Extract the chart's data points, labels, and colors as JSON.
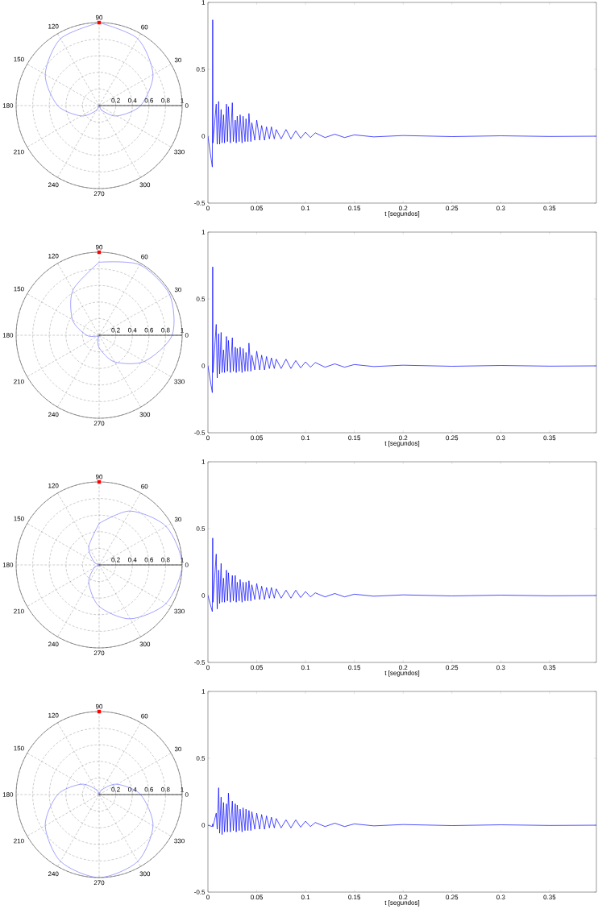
{
  "chart_data": [
    {
      "type": "radar",
      "categories": [
        "90",
        "60",
        "30",
        "0",
        "330",
        "300",
        "270",
        "240",
        "210",
        "180",
        "150",
        "120"
      ],
      "ylim": [
        0,
        1
      ],
      "yticks": [
        0.2,
        0.4,
        0.6,
        0.8,
        1
      ],
      "grid": true,
      "series": [
        {
          "color": "#6464ff",
          "values": [
            1,
            0.93,
            0.75,
            0.5,
            0.25,
            0.07,
            0,
            0.07,
            0.25,
            0.5,
            0.75,
            0.93
          ]
        }
      ]
    },
    {
      "type": "line",
      "color": "#0000ff",
      "xlabel": "t [segundos]",
      "xlim": [
        0,
        0.398
      ],
      "xticks": [
        0,
        0.05,
        0.1,
        0.15,
        0.2,
        0.25,
        0.3,
        0.35
      ],
      "ylim": [
        -0.5,
        1
      ],
      "yticks": [
        -0.5,
        0,
        0.5,
        1
      ],
      "x": [
        0,
        0.0045,
        0.0049,
        0.0052,
        0.0085,
        0.0095,
        0.011,
        0.012,
        0.0135,
        0.0145,
        0.016,
        0.017,
        0.019,
        0.02,
        0.021,
        0.023,
        0.025,
        0.026,
        0.028,
        0.029,
        0.03,
        0.032,
        0.033,
        0.035,
        0.036,
        0.038,
        0.039,
        0.041,
        0.042,
        0.044,
        0.045,
        0.048,
        0.05,
        0.053,
        0.055,
        0.058,
        0.06,
        0.063,
        0.065,
        0.068,
        0.07,
        0.075,
        0.08,
        0.085,
        0.09,
        0.095,
        0.1,
        0.105,
        0.11,
        0.12,
        0.13,
        0.14,
        0.15,
        0.17,
        0.2,
        0.25,
        0.3,
        0.35,
        0.398
      ],
      "values": [
        0,
        -0.23,
        0.87,
        -0.05,
        0.24,
        -0.06,
        0.26,
        -0.06,
        0.2,
        -0.05,
        0.16,
        -0.05,
        0.24,
        -0.04,
        0.22,
        -0.05,
        0.25,
        -0.04,
        0.12,
        -0.05,
        0.15,
        -0.04,
        0.16,
        -0.05,
        0.15,
        -0.04,
        0.13,
        -0.04,
        0.17,
        -0.04,
        0.1,
        -0.03,
        0.12,
        -0.03,
        0.08,
        -0.03,
        0.07,
        -0.02,
        0.07,
        -0.02,
        0.05,
        -0.02,
        0.05,
        -0.02,
        0.04,
        -0.015,
        0.03,
        -0.01,
        0.025,
        -0.01,
        0.015,
        -0.01,
        0.01,
        -0.005,
        0.005,
        -0.003,
        0.003,
        -0.002,
        0
      ]
    },
    {
      "type": "radar",
      "categories": [
        "90",
        "60",
        "30",
        "0",
        "330",
        "300",
        "270",
        "240",
        "210",
        "180",
        "150",
        "120"
      ],
      "ylim": [
        0,
        1
      ],
      "yticks": [
        0.2,
        0.4,
        0.6,
        0.8,
        1
      ],
      "grid": true,
      "series": [
        {
          "color": "#6464ff",
          "values": [
            0.88,
            0.98,
            0.98,
            0.88,
            0.63,
            0.37,
            0.15,
            0.02,
            0.02,
            0.15,
            0.37,
            0.63
          ]
        }
      ]
    },
    {
      "type": "line",
      "color": "#0000ff",
      "xlabel": "t [segundos]",
      "xlim": [
        0,
        0.398
      ],
      "xticks": [
        0,
        0.05,
        0.1,
        0.15,
        0.2,
        0.25,
        0.3,
        0.35
      ],
      "ylim": [
        -0.5,
        1
      ],
      "yticks": [
        -0.5,
        0,
        0.5,
        1
      ],
      "x": [
        0,
        0.0045,
        0.0049,
        0.0052,
        0.0085,
        0.0095,
        0.011,
        0.012,
        0.0135,
        0.0145,
        0.016,
        0.017,
        0.019,
        0.02,
        0.021,
        0.023,
        0.025,
        0.026,
        0.028,
        0.029,
        0.03,
        0.032,
        0.033,
        0.035,
        0.036,
        0.038,
        0.039,
        0.041,
        0.042,
        0.044,
        0.045,
        0.048,
        0.05,
        0.053,
        0.055,
        0.058,
        0.06,
        0.063,
        0.065,
        0.068,
        0.07,
        0.075,
        0.08,
        0.085,
        0.09,
        0.095,
        0.1,
        0.105,
        0.11,
        0.12,
        0.13,
        0.14,
        0.15,
        0.17,
        0.2,
        0.25,
        0.3,
        0.35,
        0.398
      ],
      "values": [
        0,
        -0.2,
        0.74,
        -0.05,
        0.31,
        -0.09,
        0.24,
        -0.06,
        0.25,
        -0.05,
        0.12,
        -0.05,
        0.22,
        -0.04,
        0.19,
        -0.05,
        0.21,
        -0.04,
        0.14,
        -0.05,
        0.13,
        -0.04,
        0.14,
        -0.05,
        0.13,
        -0.04,
        0.1,
        -0.04,
        0.17,
        -0.04,
        0.08,
        -0.03,
        0.11,
        -0.03,
        0.08,
        -0.03,
        0.07,
        -0.02,
        0.06,
        -0.02,
        0.05,
        -0.02,
        0.05,
        -0.02,
        0.04,
        -0.015,
        0.03,
        -0.01,
        0.025,
        -0.01,
        0.015,
        -0.01,
        0.01,
        -0.005,
        0.005,
        -0.003,
        0.003,
        -0.002,
        0
      ]
    },
    {
      "type": "radar",
      "categories": [
        "90",
        "60",
        "30",
        "0",
        "330",
        "300",
        "270",
        "240",
        "210",
        "180",
        "150",
        "120"
      ],
      "ylim": [
        0,
        1
      ],
      "yticks": [
        0.2,
        0.4,
        0.6,
        0.8,
        1
      ],
      "grid": true,
      "series": [
        {
          "color": "#6464ff",
          "values": [
            0.5,
            0.75,
            0.93,
            1,
            0.93,
            0.75,
            0.5,
            0.25,
            0.07,
            0,
            0.07,
            0.25
          ]
        }
      ]
    },
    {
      "type": "line",
      "color": "#0000ff",
      "xlabel": "t [segundos]",
      "xlim": [
        0,
        0.398
      ],
      "xticks": [
        0,
        0.05,
        0.1,
        0.15,
        0.2,
        0.25,
        0.3,
        0.35
      ],
      "ylim": [
        -0.5,
        1
      ],
      "yticks": [
        -0.5,
        0,
        0.5,
        1
      ],
      "x": [
        0,
        0.0045,
        0.0049,
        0.0052,
        0.0085,
        0.0095,
        0.011,
        0.012,
        0.0135,
        0.0145,
        0.016,
        0.017,
        0.019,
        0.02,
        0.021,
        0.023,
        0.025,
        0.026,
        0.028,
        0.029,
        0.03,
        0.032,
        0.033,
        0.035,
        0.036,
        0.038,
        0.039,
        0.041,
        0.042,
        0.044,
        0.045,
        0.048,
        0.05,
        0.053,
        0.055,
        0.058,
        0.06,
        0.063,
        0.065,
        0.068,
        0.07,
        0.075,
        0.08,
        0.085,
        0.09,
        0.095,
        0.1,
        0.105,
        0.11,
        0.12,
        0.13,
        0.14,
        0.15,
        0.17,
        0.2,
        0.25,
        0.3,
        0.35,
        0.398
      ],
      "values": [
        0,
        -0.12,
        0.43,
        -0.05,
        0.31,
        -0.1,
        0.19,
        -0.06,
        0.24,
        -0.05,
        0.13,
        -0.05,
        0.19,
        -0.04,
        0.17,
        -0.05,
        0.15,
        -0.04,
        0.15,
        -0.05,
        0.1,
        -0.04,
        0.12,
        -0.05,
        0.1,
        -0.04,
        0.1,
        -0.04,
        0.11,
        -0.04,
        0.08,
        -0.03,
        0.09,
        -0.03,
        0.07,
        -0.03,
        0.06,
        -0.02,
        0.06,
        -0.02,
        0.05,
        -0.02,
        0.04,
        -0.02,
        0.04,
        -0.015,
        0.03,
        -0.01,
        0.02,
        -0.01,
        0.015,
        -0.01,
        0.01,
        -0.005,
        0.005,
        -0.003,
        0.003,
        -0.002,
        0
      ]
    },
    {
      "type": "radar",
      "categories": [
        "90",
        "60",
        "30",
        "0",
        "330",
        "300",
        "270",
        "240",
        "210",
        "180",
        "150",
        "120"
      ],
      "ylim": [
        0,
        1
      ],
      "yticks": [
        0.2,
        0.4,
        0.6,
        0.8,
        1
      ],
      "grid": true,
      "series": [
        {
          "color": "#6464ff",
          "values": [
            0,
            0.07,
            0.25,
            0.5,
            0.75,
            0.93,
            1,
            0.93,
            0.75,
            0.5,
            0.25,
            0.07
          ]
        }
      ]
    },
    {
      "type": "line",
      "color": "#0000ff",
      "xlabel": "t [segundos]",
      "xlim": [
        0,
        0.398
      ],
      "xticks": [
        0,
        0.05,
        0.1,
        0.15,
        0.2,
        0.25,
        0.3,
        0.35
      ],
      "ylim": [
        -0.5,
        1
      ],
      "yticks": [
        -0.5,
        0,
        0.5,
        1
      ],
      "x": [
        0,
        0.0045,
        0.0049,
        0.0052,
        0.0085,
        0.0095,
        0.011,
        0.012,
        0.0135,
        0.0145,
        0.016,
        0.017,
        0.019,
        0.02,
        0.021,
        0.023,
        0.025,
        0.026,
        0.028,
        0.029,
        0.03,
        0.032,
        0.033,
        0.035,
        0.036,
        0.038,
        0.039,
        0.041,
        0.042,
        0.044,
        0.045,
        0.048,
        0.05,
        0.053,
        0.055,
        0.058,
        0.06,
        0.063,
        0.065,
        0.068,
        0.07,
        0.075,
        0.08,
        0.085,
        0.09,
        0.095,
        0.1,
        0.105,
        0.11,
        0.12,
        0.13,
        0.14,
        0.15,
        0.17,
        0.2,
        0.25,
        0.3,
        0.35,
        0.398
      ],
      "values": [
        0,
        -0.01,
        0.01,
        -0.01,
        0.09,
        -0.03,
        0.28,
        -0.06,
        0.21,
        -0.07,
        0.17,
        -0.05,
        0.16,
        -0.05,
        0.24,
        -0.05,
        0.18,
        -0.04,
        0.16,
        -0.05,
        0.15,
        -0.04,
        0.12,
        -0.05,
        0.13,
        -0.04,
        0.12,
        -0.04,
        0.11,
        -0.04,
        0.1,
        -0.03,
        0.09,
        -0.03,
        0.08,
        -0.03,
        0.07,
        -0.02,
        0.06,
        -0.02,
        0.05,
        -0.02,
        0.04,
        -0.02,
        0.04,
        -0.015,
        0.03,
        -0.01,
        0.02,
        -0.01,
        0.015,
        -0.01,
        0.01,
        -0.005,
        0.005,
        -0.003,
        0.003,
        -0.002,
        0
      ]
    }
  ]
}
